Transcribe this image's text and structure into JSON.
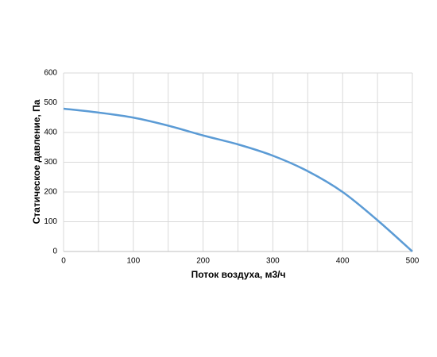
{
  "chart_data": {
    "type": "line",
    "x_label": "Поток воздуха, м3/ч",
    "y_label": "Статическое давление, Па",
    "x": [
      0,
      50,
      100,
      150,
      200,
      250,
      300,
      350,
      400,
      450,
      500
    ],
    "series": [
      {
        "color": "#5b9bd5",
        "values": [
          480,
          467,
          450,
          423,
          390,
          360,
          322,
          270,
          200,
          105,
          0
        ]
      }
    ],
    "xlim": [
      0,
      500
    ],
    "xticks": [
      0,
      100,
      200,
      300,
      400,
      500
    ],
    "x_gridlines": [
      0,
      50,
      100,
      150,
      200,
      250,
      300,
      350,
      400,
      450,
      500
    ],
    "ylim": [
      0,
      600
    ],
    "yticks": [
      0,
      100,
      200,
      300,
      400,
      500,
      600
    ],
    "grid": true
  }
}
